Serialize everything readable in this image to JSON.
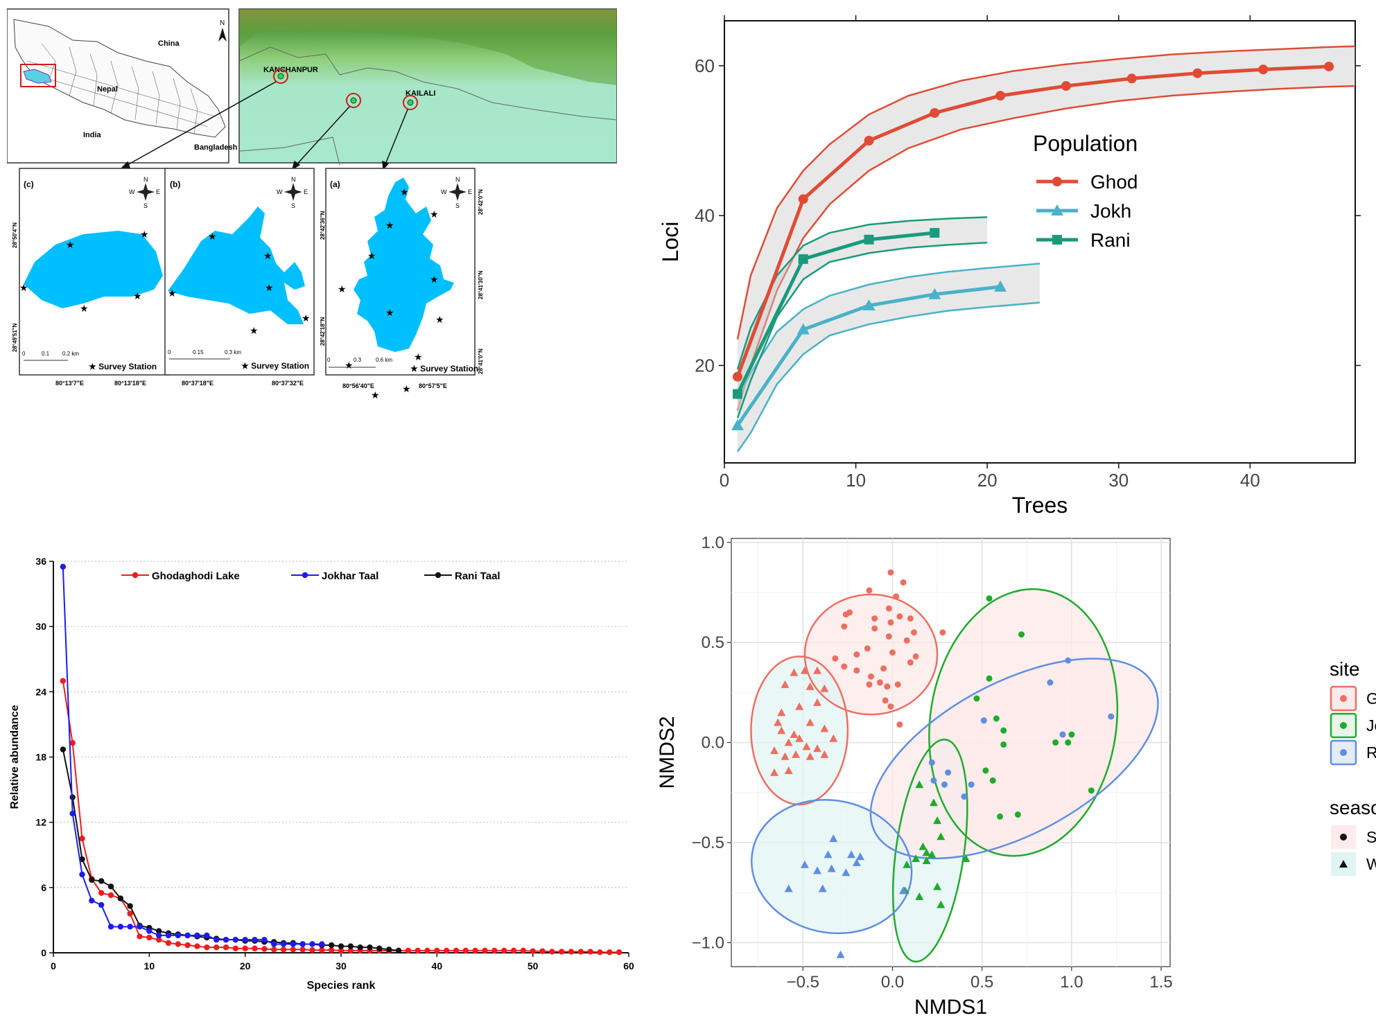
{
  "map": {
    "overview": {
      "labels": [
        "China",
        "Nepal",
        "India",
        "Bangladesh"
      ],
      "north": "N"
    },
    "region": {
      "districts": [
        "KANCHANPUR",
        "KAILALI"
      ]
    },
    "panels": [
      {
        "label": "(c)",
        "lat_top": "28°50'4\"N",
        "lat_bottom": "28°49'51\"N",
        "lon_left": "80°13'7\"E",
        "lon_right": "80°13'18\"E",
        "scale": [
          "0",
          "0.1",
          "0.2 km"
        ],
        "legend": "★ Survey Station"
      },
      {
        "label": "(b)",
        "lat_top": "",
        "lat_bottom": "",
        "lon_left": "80°37'18\"E",
        "lon_right": "80°37'32\"E",
        "scale": [
          "0",
          "0.15",
          "0.3 km"
        ],
        "legend": "★ Survey Station"
      },
      {
        "label": "(a)",
        "lat_left_top": "28°42'36\"N",
        "lat_left_bottom": "28°42'18\"N",
        "lat_right_top": "28°42'0\"N",
        "lat_right_mid": "28°41'30\"N",
        "lat_right_bottom": "28°41'0\"N",
        "lon_left": "80°56'40\"E",
        "lon_right": "80°57'5\"E",
        "scale": [
          "0",
          "0.3",
          "0.6 km"
        ],
        "legend": "★ Survey Station"
      }
    ],
    "compass": {
      "n": "N",
      "s": "S",
      "w": "W",
      "e": "E"
    }
  },
  "chart_data": [
    {
      "type": "line",
      "xlabel": "Trees",
      "ylabel": "Loci",
      "xlim": [
        0,
        48
      ],
      "ylim": [
        7,
        66
      ],
      "xticks": [
        0,
        10,
        20,
        30,
        40
      ],
      "yticks": [
        20,
        40,
        60
      ],
      "legend_title": "Population",
      "legend_position": "right",
      "series": [
        {
          "name": "Ghod",
          "color": "#e04b35",
          "marker": "circle",
          "x": [
            1,
            6,
            11,
            16,
            21,
            26,
            31,
            36,
            41,
            46
          ],
          "y": [
            18.5,
            42.2,
            50.0,
            53.7,
            56.0,
            57.3,
            58.3,
            59.0,
            59.5,
            59.9
          ],
          "band_x": [
            1,
            2,
            4,
            6,
            8,
            11,
            14,
            18,
            22,
            26,
            30,
            34,
            38,
            42,
            46,
            48
          ],
          "band_upper": [
            23.5,
            32,
            41,
            46,
            49.5,
            53.5,
            56,
            58,
            59.3,
            60.2,
            60.9,
            61.5,
            61.9,
            62.2,
            62.5,
            62.6
          ],
          "band_lower": [
            14,
            20,
            30,
            37,
            41.5,
            46,
            49,
            51.5,
            53,
            54.3,
            55.3,
            56,
            56.5,
            56.9,
            57.2,
            57.3
          ]
        },
        {
          "name": "Jokh",
          "color": "#48b2c9",
          "marker": "triangle",
          "x": [
            1,
            6,
            11,
            16,
            21
          ],
          "y": [
            12.0,
            24.8,
            28.0,
            29.5,
            30.5
          ],
          "band_x": [
            1,
            2,
            4,
            6,
            8,
            11,
            14,
            17,
            20,
            24
          ],
          "band_upper": [
            15.5,
            19,
            24.5,
            27.5,
            29.3,
            30.8,
            31.8,
            32.5,
            33.0,
            33.6
          ],
          "band_lower": [
            8.5,
            11,
            17.5,
            21.5,
            24,
            25.5,
            26.5,
            27.3,
            27.8,
            28.4
          ]
        },
        {
          "name": "Rani",
          "color": "#1a9a7c",
          "marker": "square",
          "x": [
            1,
            6,
            11,
            16
          ],
          "y": [
            16.2,
            34.2,
            36.8,
            37.7
          ],
          "band_x": [
            1,
            2,
            4,
            6,
            8,
            11,
            14,
            17,
            20
          ],
          "band_upper": [
            19.5,
            25,
            32,
            36,
            37.7,
            38.8,
            39.3,
            39.6,
            39.8
          ],
          "band_lower": [
            13,
            18,
            26.5,
            31.5,
            33.8,
            35.0,
            35.7,
            36.1,
            36.4
          ]
        }
      ]
    },
    {
      "type": "line",
      "xlabel": "Species rank",
      "ylabel": "Relative abundance",
      "xlim": [
        0,
        60
      ],
      "ylim": [
        0,
        36
      ],
      "xticks": [
        0,
        10,
        20,
        30,
        40,
        50,
        60
      ],
      "yticks": [
        0,
        6,
        12,
        18,
        24,
        30,
        36
      ],
      "grid": "horizontal dotted",
      "legend_position": "top",
      "series": [
        {
          "name": "Ghodaghodi Lake",
          "color": "#ee1c1c",
          "x": [
            1,
            2,
            3,
            4,
            5,
            6,
            7,
            8,
            9,
            10,
            11,
            12,
            13,
            14,
            15,
            16,
            17,
            18,
            19,
            20,
            21,
            22,
            23,
            24,
            25,
            26,
            27,
            28,
            29,
            30,
            31,
            32,
            33,
            34,
            35,
            36,
            37,
            38,
            39,
            40,
            41,
            42,
            43,
            44,
            45,
            46,
            47,
            48,
            49,
            50,
            51,
            52,
            53,
            54,
            55,
            56,
            57,
            58,
            59
          ],
          "y": [
            25.0,
            19.3,
            10.5,
            6.8,
            5.5,
            5.3,
            5.0,
            3.6,
            1.5,
            1.4,
            1.2,
            0.9,
            0.8,
            0.7,
            0.6,
            0.5,
            0.5,
            0.5,
            0.4,
            0.4,
            0.4,
            0.35,
            0.3,
            0.3,
            0.3,
            0.3,
            0.25,
            0.25,
            0.25,
            0.2,
            0.2,
            0.2,
            0.2,
            0.2,
            0.2,
            0.2,
            0.2,
            0.2,
            0.2,
            0.2,
            0.2,
            0.2,
            0.2,
            0.2,
            0.2,
            0.2,
            0.2,
            0.2,
            0.2,
            0.15,
            0.15,
            0.1,
            0.1,
            0.1,
            0.1,
            0.1,
            0.05,
            0.05,
            0.05
          ]
        },
        {
          "name": "Jokhar Taal",
          "color": "#1c1cee",
          "x": [
            1,
            2,
            3,
            4,
            5,
            6,
            7,
            8,
            9,
            10,
            11,
            12,
            13,
            14,
            15,
            16,
            17,
            18,
            19,
            20,
            21,
            22,
            23,
            24,
            25,
            26,
            27,
            28
          ],
          "y": [
            35.5,
            12.8,
            7.2,
            4.8,
            4.4,
            2.4,
            2.4,
            2.4,
            2.4,
            2.0,
            1.6,
            1.6,
            1.6,
            1.6,
            1.6,
            1.6,
            1.2,
            1.2,
            1.2,
            1.2,
            1.2,
            1.2,
            0.8,
            0.8,
            0.8,
            0.8,
            0.8,
            0.8
          ]
        },
        {
          "name": "Rani Taal",
          "color": "#111111",
          "x": [
            1,
            2,
            3,
            4,
            5,
            6,
            7,
            8,
            9,
            10,
            11,
            12,
            13,
            14,
            15,
            16,
            17,
            18,
            19,
            20,
            21,
            22,
            23,
            24,
            25,
            26,
            27,
            28,
            29,
            30,
            31,
            32,
            33,
            34,
            35,
            36
          ],
          "y": [
            18.7,
            14.3,
            8.6,
            6.7,
            6.6,
            6.1,
            5.0,
            4.3,
            2.5,
            2.3,
            2.0,
            1.8,
            1.7,
            1.6,
            1.5,
            1.4,
            1.3,
            1.2,
            1.2,
            1.1,
            1.1,
            1.0,
            1.0,
            0.9,
            0.9,
            0.8,
            0.8,
            0.7,
            0.7,
            0.6,
            0.6,
            0.5,
            0.5,
            0.4,
            0.3,
            0.2
          ]
        }
      ]
    },
    {
      "type": "scatter",
      "xlabel": "NMDS1",
      "ylabel": "NMDS2",
      "xlim": [
        -0.9,
        1.55
      ],
      "ylim": [
        -1.12,
        1.02
      ],
      "xticks": [
        -0.5,
        0.0,
        0.5,
        1.0,
        1.5
      ],
      "xtick_labels": [
        "−0.5",
        "0.0",
        "0.5",
        "1.0",
        "1.5"
      ],
      "yticks": [
        -1.0,
        -0.5,
        0.0,
        0.5,
        1.0
      ],
      "ytick_labels": [
        "−1.0",
        "−0.5",
        "0.0",
        "0.5",
        "1.0"
      ],
      "grid": true,
      "legend_position": "right",
      "legend": {
        "site_title": "site",
        "sites": [
          {
            "name": "Ghod",
            "color": "#ec6f61"
          },
          {
            "name": "Jokh",
            "color": "#1fab2c"
          },
          {
            "name": "Rani",
            "color": "#5f8ee0"
          }
        ],
        "season_title": "season",
        "seasons": [
          {
            "name": "Summer",
            "shape": "circle",
            "fill": "#fdeaea"
          },
          {
            "name": "Winter",
            "shape": "triangle",
            "fill": "#e1f4f4"
          }
        ]
      },
      "ellipses": [
        {
          "site": "Ghod",
          "season": "Summer",
          "cx": -0.12,
          "cy": 0.44,
          "rx": 0.37,
          "ry": 0.3,
          "angle": 0
        },
        {
          "site": "Ghod",
          "season": "Winter",
          "cx": -0.52,
          "cy": 0.06,
          "rx": 0.27,
          "ry": 0.37,
          "angle": 0
        },
        {
          "site": "Jokh",
          "season": "Summer",
          "cx": 0.73,
          "cy": 0.1,
          "rx": 0.52,
          "ry": 0.67,
          "angle": -8
        },
        {
          "site": "Jokh",
          "season": "Winter",
          "cx": 0.21,
          "cy": -0.54,
          "rx": 0.19,
          "ry": 0.56,
          "angle": -8
        },
        {
          "site": "Rani",
          "season": "Summer",
          "cx": 0.68,
          "cy": -0.08,
          "rx": 0.88,
          "ry": 0.38,
          "angle": 28
        },
        {
          "site": "Rani",
          "season": "Winter",
          "cx": -0.34,
          "cy": -0.62,
          "rx": 0.45,
          "ry": 0.33,
          "angle": -12
        }
      ],
      "points": {
        "Ghod_Summer": [
          [
            -0.01,
            0.85
          ],
          [
            0.06,
            0.8
          ],
          [
            0.02,
            0.73
          ],
          [
            -0.13,
            0.76
          ],
          [
            -0.24,
            0.65
          ],
          [
            -0.26,
            0.64
          ],
          [
            -0.27,
            0.58
          ],
          [
            -0.1,
            0.62
          ],
          [
            -0.02,
            0.67
          ],
          [
            0.04,
            0.63
          ],
          [
            0.1,
            0.62
          ],
          [
            -0.01,
            0.6
          ],
          [
            -0.1,
            0.57
          ],
          [
            -0.02,
            0.53
          ],
          [
            0.12,
            0.55
          ],
          [
            0.08,
            0.51
          ],
          [
            0.28,
            0.55
          ],
          [
            0.13,
            0.43
          ],
          [
            -0.14,
            0.47
          ],
          [
            0.0,
            0.45
          ],
          [
            -0.2,
            0.44
          ],
          [
            0.1,
            0.4
          ],
          [
            -0.27,
            0.38
          ],
          [
            -0.2,
            0.36
          ],
          [
            -0.05,
            0.37
          ],
          [
            -0.12,
            0.33
          ],
          [
            -0.07,
            0.3
          ],
          [
            -0.13,
            0.29
          ],
          [
            -0.03,
            0.28
          ],
          [
            -0.04,
            0.21
          ],
          [
            0.03,
            0.29
          ],
          [
            -0.01,
            0.18
          ],
          [
            0.04,
            0.09
          ],
          [
            -0.32,
            0.42
          ]
        ],
        "Ghod_Winter": [
          [
            -0.55,
            0.35
          ],
          [
            -0.49,
            0.36
          ],
          [
            -0.42,
            0.36
          ],
          [
            -0.6,
            0.29
          ],
          [
            -0.46,
            0.28
          ],
          [
            -0.38,
            0.27
          ],
          [
            -0.42,
            0.2
          ],
          [
            -0.62,
            0.15
          ],
          [
            -0.64,
            0.1
          ],
          [
            -0.52,
            0.18
          ],
          [
            -0.46,
            0.1
          ],
          [
            -0.38,
            0.07
          ],
          [
            -0.33,
            0.02
          ],
          [
            -0.62,
            0.06
          ],
          [
            -0.55,
            0.04
          ],
          [
            -0.52,
            0.02
          ],
          [
            -0.48,
            -0.02
          ],
          [
            -0.42,
            -0.03
          ],
          [
            -0.58,
            0.0
          ],
          [
            -0.66,
            -0.04
          ],
          [
            -0.6,
            -0.07
          ],
          [
            -0.54,
            -0.06
          ],
          [
            -0.46,
            -0.07
          ],
          [
            -0.38,
            -0.06
          ],
          [
            -0.66,
            -0.15
          ],
          [
            -0.58,
            -0.14
          ]
        ],
        "Jokh_Summer": [
          [
            0.54,
            0.72
          ],
          [
            0.72,
            0.54
          ],
          [
            0.54,
            0.32
          ],
          [
            0.47,
            0.22
          ],
          [
            0.58,
            0.12
          ],
          [
            0.62,
            0.06
          ],
          [
            0.91,
            0.0
          ],
          [
            0.98,
            0.0
          ],
          [
            0.62,
            -0.01
          ],
          [
            0.52,
            -0.14
          ],
          [
            0.56,
            -0.19
          ],
          [
            1.11,
            -0.24
          ],
          [
            0.6,
            -0.37
          ],
          [
            0.7,
            -0.36
          ],
          [
            1.0,
            0.04
          ]
        ],
        "Jokh_Winter": [
          [
            0.23,
            -0.3
          ],
          [
            0.15,
            -0.21
          ],
          [
            0.25,
            -0.39
          ],
          [
            0.27,
            -0.47
          ],
          [
            0.17,
            -0.52
          ],
          [
            0.19,
            -0.55
          ],
          [
            0.13,
            -0.58
          ],
          [
            0.22,
            -0.56
          ],
          [
            0.41,
            -0.58
          ],
          [
            0.08,
            -0.61
          ],
          [
            0.25,
            -0.72
          ],
          [
            0.07,
            -0.74
          ],
          [
            0.15,
            -0.77
          ],
          [
            0.27,
            -0.81
          ],
          [
            0.19,
            -0.59
          ]
        ],
        "Rani_Summer": [
          [
            0.88,
            0.3
          ],
          [
            0.98,
            0.41
          ],
          [
            0.51,
            0.11
          ],
          [
            1.22,
            0.13
          ],
          [
            0.95,
            0.04
          ],
          [
            0.22,
            -0.1
          ],
          [
            0.29,
            -0.21
          ],
          [
            0.4,
            -0.27
          ],
          [
            0.44,
            -0.21
          ],
          [
            0.23,
            -0.19
          ],
          [
            0.31,
            -0.15
          ]
        ],
        "Rani_Winter": [
          [
            -0.33,
            -0.48
          ],
          [
            -0.23,
            -0.56
          ],
          [
            -0.49,
            -0.61
          ],
          [
            -0.42,
            -0.64
          ],
          [
            -0.34,
            -0.63
          ],
          [
            -0.26,
            -0.65
          ],
          [
            -0.36,
            -0.56
          ],
          [
            -0.39,
            -0.73
          ],
          [
            -0.58,
            -0.73
          ],
          [
            -0.2,
            -0.6
          ],
          [
            -0.29,
            -1.06
          ],
          [
            -0.18,
            -0.57
          ],
          [
            0.06,
            -0.74
          ]
        ]
      }
    }
  ]
}
